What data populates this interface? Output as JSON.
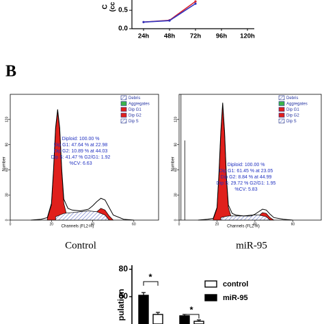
{
  "panel_label": "B",
  "chart_data": [
    {
      "type": "line",
      "ylabel_lines": [
        "C",
        "(cc"
      ],
      "categories": [
        "24h",
        "48h",
        "72h",
        "96h",
        "120h"
      ],
      "series": [
        {
          "name": null,
          "color": "#d8202c",
          "values": [
            0.18,
            0.23,
            0.74,
            null,
            null
          ]
        },
        {
          "name": null,
          "color": "#3034c0",
          "values": [
            0.18,
            0.22,
            0.68,
            null,
            null
          ]
        }
      ],
      "ylim": [
        0,
        0.78
      ],
      "yticks": [
        {
          "value": 0,
          "label": "0.0"
        },
        0.5
      ]
    },
    {
      "type": "flow",
      "caption": "Control",
      "xlabel": "Channels (FL2-H)",
      "ylabel": "Number",
      "xlim": [
        0,
        72
      ],
      "ylim": [
        0,
        150
      ],
      "xticks": [
        0,
        20,
        40,
        60
      ],
      "yticks": [
        0,
        30,
        60,
        90,
        120
      ],
      "x": [
        10,
        15,
        18,
        20,
        21,
        22,
        23,
        24,
        25,
        26,
        28,
        30,
        34,
        38,
        40,
        42,
        44,
        46,
        48,
        50,
        55,
        60
      ],
      "values": [
        0,
        1,
        3,
        20,
        60,
        110,
        132,
        110,
        60,
        25,
        14,
        12,
        11,
        13,
        17,
        22,
        26,
        24,
        15,
        6,
        1,
        0
      ],
      "series": [
        {
          "name": "Debris",
          "color": "#9aa2dc",
          "x": [],
          "values": []
        },
        {
          "name": "Aggregates",
          "color": "#3cb44a",
          "x": [],
          "values": []
        },
        {
          "name": "Dip G1",
          "color": "#e0201c",
          "x": [
            18,
            20,
            21,
            22,
            23,
            24,
            25,
            26,
            28
          ],
          "values": [
            2,
            18,
            58,
            108,
            130,
            108,
            58,
            20,
            0
          ]
        },
        {
          "name": "Dip G2",
          "color": "#e0201c",
          "x": [
            38,
            40,
            42,
            44,
            46,
            48,
            50
          ],
          "values": [
            0,
            4,
            10,
            14,
            12,
            5,
            0
          ]
        },
        {
          "name": "Dip S",
          "color": "#6070c8",
          "hatch": true,
          "x": [
            22,
            26,
            30,
            34,
            38,
            42,
            46,
            48
          ],
          "values": [
            4,
            8,
            9,
            10,
            11,
            10,
            6,
            0
          ]
        }
      ],
      "stats": [
        "Diploid: 100.00 %",
        "Dip G1: 47.64 % at 22.98",
        "Dip G2: 10.89 % at 44.03",
        "Dip S: 41.47 %   G2/G1: 1.92",
        "%CV: 6.63"
      ]
    },
    {
      "type": "flow",
      "caption": "miR-95",
      "xlabel": "Channels (FL2-H)",
      "ylabel": "Number",
      "xlim": [
        0,
        75
      ],
      "ylim": [
        0,
        150
      ],
      "xticks": [
        0,
        20,
        40,
        60
      ],
      "yticks": [
        0,
        30,
        60,
        90,
        120
      ],
      "x": [
        10,
        15,
        18,
        20,
        21,
        22,
        23,
        24,
        25,
        26,
        28,
        30,
        34,
        38,
        40,
        42,
        44,
        46,
        48,
        50,
        55,
        60
      ],
      "values": [
        0,
        1,
        2,
        15,
        55,
        105,
        140,
        105,
        50,
        18,
        8,
        6,
        5,
        5,
        7,
        10,
        13,
        12,
        7,
        3,
        1,
        0
      ],
      "series": [
        {
          "name": "Debris",
          "color": "#9aa2dc",
          "x": [
            1,
            3
          ],
          "values": [
            150,
            95
          ]
        },
        {
          "name": "Aggregates",
          "color": "#3cb44a",
          "x": [],
          "values": []
        },
        {
          "name": "Dip G1",
          "color": "#e0201c",
          "x": [
            18,
            20,
            21,
            22,
            23,
            24,
            25,
            26,
            28
          ],
          "values": [
            1,
            14,
            53,
            103,
            138,
            103,
            48,
            15,
            0
          ]
        },
        {
          "name": "Dip G2",
          "color": "#e0201c",
          "x": [
            40,
            42,
            44,
            46,
            48,
            50
          ],
          "values": [
            0,
            5,
            9,
            8,
            3,
            0
          ]
        },
        {
          "name": "Dip S",
          "color": "#6070c8",
          "hatch": true,
          "x": [
            22,
            26,
            30,
            34,
            38,
            42,
            46,
            48
          ],
          "values": [
            3,
            5,
            5,
            5,
            6,
            6,
            4,
            0
          ]
        }
      ],
      "stats": [
        "Diploid: 100.00 %",
        "Dip G1: 61.45 % at 23.05",
        "Dip G2: 8.84 % at 44.99",
        "Dip S: 29.72 %   G2/G1: 1.95",
        "%CV: 5.83"
      ]
    },
    {
      "type": "bar",
      "ylabel": "pulation",
      "categories": [
        null,
        null
      ],
      "series": [
        {
          "name": "control",
          "color": "#ffffff",
          "values": [
            47,
            42
          ],
          "errors": [
            1.5,
            1
          ]
        },
        {
          "name": "miR-95",
          "color": "#000000",
          "values": [
            61,
            46
          ],
          "errors": [
            2,
            1
          ]
        }
      ],
      "ylim": [
        40,
        80
      ],
      "yticks": [
        60,
        80
      ],
      "annotations": [
        "*",
        "*"
      ]
    }
  ]
}
